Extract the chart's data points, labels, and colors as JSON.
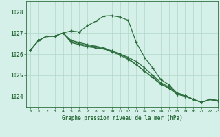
{
  "title": "Graphe pression niveau de la mer (hPa)",
  "background_color": "#d4f0e8",
  "grid_color": "#b0d8c8",
  "line_color": "#2d6e3e",
  "xlim": [
    -0.5,
    23
  ],
  "ylim": [
    1023.5,
    1028.5
  ],
  "yticks": [
    1024,
    1025,
    1026,
    1027,
    1028
  ],
  "xticks": [
    0,
    1,
    2,
    3,
    4,
    5,
    6,
    7,
    8,
    9,
    10,
    11,
    12,
    13,
    14,
    15,
    16,
    17,
    18,
    19,
    20,
    21,
    22,
    23
  ],
  "series": [
    [
      1026.2,
      1026.65,
      1026.85,
      1026.85,
      1027.0,
      1027.1,
      1027.05,
      1027.35,
      1027.55,
      1027.8,
      1027.82,
      1027.75,
      1027.6,
      1026.55,
      1025.85,
      1025.35,
      1024.8,
      1024.55,
      1024.15,
      1024.05,
      1023.85,
      1023.72,
      1023.85,
      1023.8
    ],
    [
      1026.2,
      1026.65,
      1026.85,
      1026.85,
      1027.0,
      1026.55,
      1026.45,
      1026.35,
      1026.3,
      1026.25,
      1026.15,
      1026.0,
      1025.85,
      1025.65,
      1025.35,
      1025.0,
      1024.65,
      1024.45,
      1024.15,
      1024.05,
      1023.85,
      1023.72,
      1023.85,
      1023.8
    ],
    [
      1026.2,
      1026.65,
      1026.85,
      1026.85,
      1027.0,
      1026.6,
      1026.5,
      1026.4,
      1026.35,
      1026.25,
      1026.1,
      1025.95,
      1025.75,
      1025.5,
      1025.2,
      1024.9,
      1024.6,
      1024.4,
      1024.1,
      1024.0,
      1023.85,
      1023.72,
      1023.85,
      1023.8
    ],
    [
      1026.2,
      1026.65,
      1026.85,
      1026.85,
      1027.0,
      1026.65,
      1026.55,
      1026.45,
      1026.38,
      1026.3,
      1026.15,
      1026.0,
      1025.8,
      1025.5,
      1025.2,
      1024.88,
      1024.58,
      1024.38,
      1024.1,
      1024.0,
      1023.85,
      1023.72,
      1023.85,
      1023.8
    ]
  ]
}
